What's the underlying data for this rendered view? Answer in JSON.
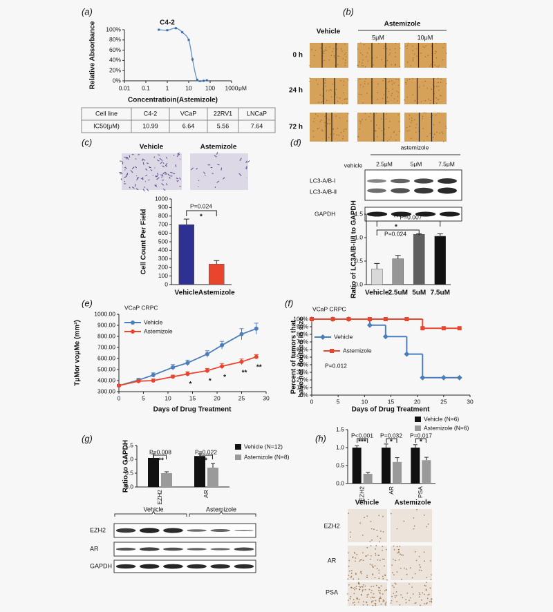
{
  "panel_labels": [
    "(a)",
    "(b)",
    "(c)",
    "(d)",
    "(e)",
    "(f)",
    "(g)",
    "(h)"
  ],
  "ic50_table": {
    "rows": [
      [
        "Cell line",
        "C4-2",
        "VCaP",
        "22RV1",
        "LNCaP"
      ],
      [
        "IC50(μM)",
        "10.99",
        "6.64",
        "5.56",
        "7.64"
      ]
    ]
  },
  "wound_assay": {
    "vehicle": "Vehicle",
    "treatment": "Astemizole",
    "doses": [
      "5μM",
      "10μM"
    ],
    "times": [
      "0 h",
      "24 h",
      "72 h"
    ]
  },
  "invasion": {
    "labels": [
      "Vehicle",
      "Astemizole"
    ]
  },
  "lc3_blot": {
    "vehicle": "vehicle",
    "treatment": "astemizole",
    "doses": [
      "2.5μM",
      "5μM",
      "7.5μM"
    ],
    "bands": [
      "LC3-A/B-I",
      "LC3-A/B-Ⅱ",
      "GAPDH"
    ]
  },
  "tumor_blot": {
    "groups": [
      "Vehicle",
      "Astemizole"
    ],
    "bands": [
      "EZH2",
      "AR",
      "GAPDH"
    ]
  },
  "ihc": {
    "groups": [
      "Vehicle",
      "Astemizole"
    ],
    "markers": [
      "EZH2",
      "AR",
      "PSA"
    ]
  },
  "chart_data": [
    {
      "type": "scatter",
      "title": "C4-2",
      "xscale": "log",
      "x": [
        0.4,
        1,
        2.5,
        5,
        10,
        15,
        25,
        50,
        70
      ],
      "values": [
        100,
        99,
        103,
        95,
        80,
        42,
        2,
        0,
        1
      ],
      "errors": [
        2,
        1,
        1,
        2,
        2,
        3,
        1,
        1,
        1
      ],
      "color": "#5b8fc9",
      "xlim": [
        0.01,
        1000
      ],
      "xticks": [
        0.01,
        0.1,
        1,
        10,
        100,
        1000
      ],
      "x_unit": "μM",
      "ylim": [
        0,
        100
      ],
      "yticks": [
        {
          "value": 0,
          "label": "0%"
        },
        {
          "value": 20,
          "label": "20%"
        },
        {
          "value": 40,
          "label": "40%"
        },
        {
          "value": 60,
          "label": "60%"
        },
        {
          "value": 80,
          "label": "80%"
        },
        {
          "value": 100,
          "label": "100%"
        }
      ],
      "ylabel": "Relative Absorbance",
      "xlabel": "Concentratioin(Astemizole)"
    },
    {
      "type": "bar",
      "categories": [
        "Vehicle",
        "Astemizole"
      ],
      "values": [
        700,
        240
      ],
      "errors": [
        65,
        40
      ],
      "colors": [
        "#2e3192",
        "#e8452c"
      ],
      "ylim": [
        0,
        1000
      ],
      "yticks": [
        0,
        100,
        200,
        300,
        400,
        500,
        600,
        700,
        800,
        900,
        1000
      ],
      "ylabel": "Cell Count Per Field",
      "annotations": [
        "P=0.024",
        "*"
      ]
    },
    {
      "type": "bar",
      "categories": [
        "Vehicle",
        "2.5uM",
        "5uM",
        "7.5uM"
      ],
      "values": [
        0.33,
        0.55,
        1.07,
        1.03
      ],
      "errors": [
        0.12,
        0.07,
        0.01,
        0.05
      ],
      "colors": [
        "#d9d9d9",
        "#969696",
        "#5f5f5f",
        "#111111"
      ],
      "ylim": [
        0,
        1.5
      ],
      "yticks": [
        {
          "value": 0,
          "label": "0.0"
        },
        0.5,
        {
          "value": 1,
          "label": "1.0"
        },
        1.5
      ],
      "ylabel": "Ratio of LC3A/B-II/I to GAPDH",
      "annotations": [
        "** P=0.007",
        "*",
        "P=0.024"
      ]
    },
    {
      "type": "line",
      "title": "VCaP CRPC",
      "x": [
        0,
        4,
        7,
        11,
        14,
        18,
        21,
        25,
        28
      ],
      "series": [
        {
          "name": "Vehicle",
          "color": "#4a7ebb",
          "marker": "circle",
          "values": [
            355,
            405,
            450,
            520,
            560,
            640,
            720,
            820,
            870
          ],
          "errors": [
            10,
            15,
            20,
            25,
            25,
            30,
            35,
            50,
            50
          ]
        },
        {
          "name": "Astemizole",
          "color": "#e8452c",
          "marker": "circle",
          "values": [
            355,
            395,
            400,
            435,
            460,
            490,
            530,
            570,
            615
          ],
          "errors": [
            10,
            12,
            15,
            15,
            20,
            20,
            25,
            25,
            20
          ]
        }
      ],
      "xlim": [
        0,
        30
      ],
      "xticks": [
        0,
        5,
        10,
        15,
        20,
        25,
        30
      ],
      "ylim": [
        300,
        1000
      ],
      "yticks": [
        {
          "value": 300,
          "label": "300.00"
        },
        {
          "value": 400,
          "label": "400.00"
        },
        {
          "value": 500,
          "label": "500.00"
        },
        {
          "value": 600,
          "label": "600.00"
        },
        {
          "value": 700,
          "label": "700.00"
        },
        {
          "value": 800,
          "label": "800.00"
        },
        {
          "value": 900,
          "label": "900.00"
        },
        {
          "value": 1000,
          "label": "1000.00"
        }
      ],
      "ylabel": "TμMor voμMe (mm³)",
      "xlabel": "Days of Drug Treatment",
      "annotations": [
        "*",
        "*",
        "*",
        "**",
        "**"
      ]
    },
    {
      "type": "line",
      "drawstyle": "steps-post",
      "title": "VCaP CRPC",
      "x": [
        0,
        4,
        7,
        11,
        14,
        18,
        21,
        25,
        28
      ],
      "series": [
        {
          "name": "Vehicle",
          "color": "#4a7ebb",
          "marker": "diamond",
          "values": [
            100,
            100,
            100,
            92,
            77,
            54,
            23,
            23,
            23
          ]
        },
        {
          "name": "Astemizole",
          "color": "#e8452c",
          "marker": "square",
          "values": [
            100,
            100,
            100,
            100,
            100,
            100,
            88,
            88,
            88
          ]
        }
      ],
      "xlim": [
        0,
        30
      ],
      "xticks": [
        0,
        5,
        10,
        15,
        20,
        25,
        30
      ],
      "ylim": [
        0,
        100
      ],
      "yticks": [
        {
          "value": 0,
          "label": "0%"
        },
        {
          "value": 10,
          "label": "10%"
        },
        {
          "value": 20,
          "label": "20%"
        },
        {
          "value": 30,
          "label": "30%"
        },
        {
          "value": 40,
          "label": "40%"
        },
        {
          "value": 50,
          "label": "50%"
        },
        {
          "value": 60,
          "label": "60%"
        },
        {
          "value": 70,
          "label": "70%"
        },
        {
          "value": 80,
          "label": "80%"
        },
        {
          "value": 90,
          "label": "90%"
        },
        {
          "value": 100,
          "label": "100%"
        }
      ],
      "ylabel": [
        "Percent of tumors that",
        "have not doubled in size"
      ],
      "xlabel": "Days of Drug Treatment",
      "annotations": [
        "P=0.012"
      ]
    },
    {
      "type": "grouped-bar",
      "categories": [
        "EZH2",
        "AR"
      ],
      "series": [
        {
          "name": "Vehicle (N=12)",
          "color": "#111111",
          "values": [
            1.05,
            1.12
          ],
          "errors": [
            0.15,
            0.08
          ]
        },
        {
          "name": "Astemizole (N=8)",
          "color": "#9a9a9a",
          "values": [
            0.5,
            0.7
          ],
          "errors": [
            0.05,
            0.15
          ]
        }
      ],
      "ylim": [
        0,
        1.5
      ],
      "yticks": [
        {
          "value": 0,
          "label": "0.0"
        },
        0.5,
        {
          "value": 1,
          "label": "1.0"
        },
        1.5
      ],
      "ylabel": "Ratio to GAPDH",
      "annotations": [
        "P=0.008",
        "**",
        "P=0.022",
        "*"
      ]
    },
    {
      "type": "grouped-bar",
      "categories": [
        "EZH2",
        "AR",
        "PSA"
      ],
      "series": [
        {
          "name": "Vehicle (N=6)",
          "color": "#111111",
          "values": [
            1.0,
            1.0,
            1.0
          ],
          "errors": [
            0.05,
            0.1,
            0.08
          ]
        },
        {
          "name": "Astemizole (N=6)",
          "color": "#9a9a9a",
          "values": [
            0.27,
            0.6,
            0.65
          ],
          "errors": [
            0.04,
            0.12,
            0.08
          ]
        }
      ],
      "ylim": [
        0,
        1.5
      ],
      "yticks": [
        {
          "value": 0,
          "label": "0.0"
        },
        0.5,
        {
          "value": 1,
          "label": "1.0"
        },
        1.5
      ],
      "annotations": [
        "P<0.001",
        "***",
        "P=0.032",
        "*",
        "P=0.017",
        "*"
      ]
    }
  ]
}
